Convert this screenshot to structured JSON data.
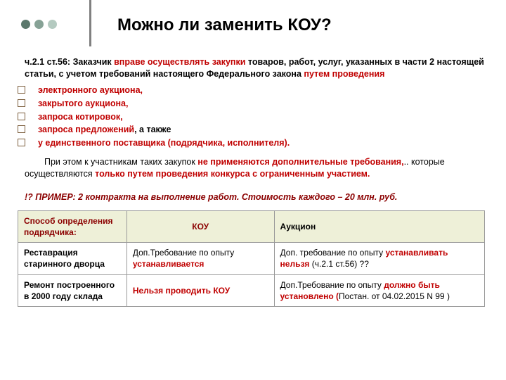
{
  "colors": {
    "dot1": "#5b786c",
    "dot2": "#87a296",
    "dot3": "#b4cac0",
    "vline": "#808080",
    "red": "#c00000",
    "maroon": "#8b0000",
    "bullet_border": "#7d603f",
    "th_bg": "#eef0d8",
    "border": "#999999"
  },
  "title": "Можно ли заменить КОУ?",
  "intro": {
    "prefix": "ч.2.1 ст.56: Заказчик ",
    "red1": "вправе осуществлять закупки",
    "mid": " товаров, работ, услуг, указанных в части 2 настоящей статьи, с учетом требований настоящего Федерального закона ",
    "red2": "путем проведения"
  },
  "bullets": [
    {
      "text": "электронного аукциона,",
      "color": "red"
    },
    {
      "text": "закрытого аукциона,",
      "color": "red"
    },
    {
      "text": "запроса котировок,",
      "color": "red"
    },
    {
      "text_pre": "запроса предложений",
      "text_post": ", а также",
      "color": "red"
    },
    {
      "text": "у единственного поставщика (подрядчика, исполнителя).",
      "color": "red"
    }
  ],
  "para2": {
    "t1": "При этом к участникам таких закупок ",
    "r1": "не применяются дополнительные требования,",
    "t2": ".. которые осуществляются ",
    "r2": "только путем проведения конкурса с ограниченным участием."
  },
  "example": "!? ПРИМЕР: 2 контракта на выполнение работ. Стоимость каждого – 20 млн. руб.",
  "table": {
    "headers": {
      "c1": "Способ определения подрядчика:",
      "c2": "КОУ",
      "c3": "Аукцион"
    },
    "rows": [
      {
        "c1": "Реставрация старинного дворца",
        "c2_pre": "Доп.Требование по опыту ",
        "c2_red": "устанавливается",
        "c3_pre": "Доп. требование по опыту ",
        "c3_red": "устанавливать нельзя",
        "c3_post": " (ч.2.1 ст.56) ??"
      },
      {
        "c1": "Ремонт построенного в 2000 году склада",
        "c2_red": "Нельзя проводить КОУ",
        "c3_pre": "Доп.Требование по опыту ",
        "c3_red": "должно быть установлено (",
        "c3_post": "Постан. от 04.02.2015 N 99 )"
      }
    ]
  }
}
